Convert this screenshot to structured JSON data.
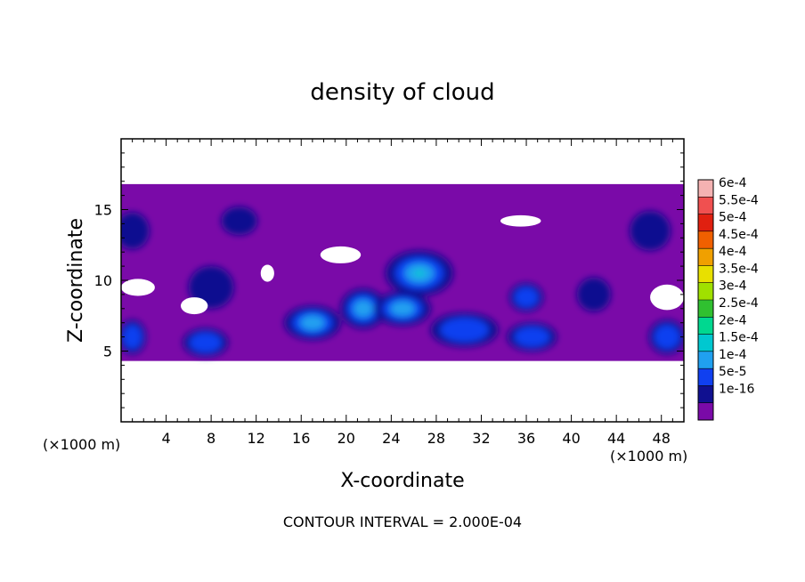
{
  "chart_data": {
    "type": "heatmap",
    "title": "density of cloud",
    "xlabel": "X-coordinate",
    "ylabel": "Z-coordinate",
    "x_unit_label": "(×1000 m)",
    "y_unit_label": "(×1000 m)",
    "xlim": [
      0,
      50
    ],
    "ylim": [
      0,
      20
    ],
    "x_ticks": [
      4,
      8,
      12,
      16,
      20,
      24,
      28,
      32,
      36,
      40,
      44,
      48
    ],
    "y_ticks": [
      5,
      10,
      15
    ],
    "footer": "CONTOUR INTERVAL = 2.000E-04",
    "colorbar": {
      "labels": [
        "6e-4",
        "5.5e-4",
        "5e-4",
        "4.5e-4",
        "4e-4",
        "3.5e-4",
        "3e-4",
        "2.5e-4",
        "2e-4",
        "1.5e-4",
        "1e-4",
        "5e-5",
        "1e-16"
      ],
      "colors": [
        "#f4b2b2",
        "#f05050",
        "#e02010",
        "#f06000",
        "#f0a000",
        "#e8e000",
        "#a0e000",
        "#30c030",
        "#00d890",
        "#00c8d0",
        "#20a0f0",
        "#1040f0",
        "#101090",
        "#7a0aa8"
      ]
    },
    "cloud_band": {
      "z_bottom": 4.3,
      "z_top": 16.8
    },
    "blobs": [
      {
        "x": 1,
        "z": 13.5,
        "rx": 1.5,
        "rz": 1.3,
        "level": 1
      },
      {
        "x": 10.5,
        "z": 14.2,
        "rx": 1.6,
        "rz": 1.0,
        "level": 1
      },
      {
        "x": 8,
        "z": 9.5,
        "rx": 2.0,
        "rz": 1.5,
        "level": 1
      },
      {
        "x": 1,
        "z": 6.0,
        "rx": 1.2,
        "rz": 1.2,
        "level": 2
      },
      {
        "x": 7.5,
        "z": 5.6,
        "rx": 2.0,
        "rz": 1.0,
        "level": 2
      },
      {
        "x": 17,
        "z": 7.0,
        "rx": 2.5,
        "rz": 1.2,
        "level": 3
      },
      {
        "x": 21.5,
        "z": 8.0,
        "rx": 2.0,
        "rz": 1.4,
        "level": 3
      },
      {
        "x": 26.5,
        "z": 10.5,
        "rx": 3.0,
        "rz": 1.6,
        "level": 4
      },
      {
        "x": 25,
        "z": 8.0,
        "rx": 2.5,
        "rz": 1.2,
        "level": 3
      },
      {
        "x": 30.5,
        "z": 6.5,
        "rx": 3.0,
        "rz": 1.2,
        "level": 2
      },
      {
        "x": 36.5,
        "z": 6.0,
        "rx": 2.2,
        "rz": 1.0,
        "level": 2
      },
      {
        "x": 36,
        "z": 8.8,
        "rx": 1.5,
        "rz": 1.0,
        "level": 2
      },
      {
        "x": 48.5,
        "z": 6.0,
        "rx": 1.6,
        "rz": 1.2,
        "level": 2
      },
      {
        "x": 47,
        "z": 13.5,
        "rx": 1.8,
        "rz": 1.4,
        "level": 1
      },
      {
        "x": 42,
        "z": 9.0,
        "rx": 1.5,
        "rz": 1.2,
        "level": 1
      }
    ],
    "gaps": [
      {
        "x": 19.5,
        "z": 11.8,
        "rx": 1.8,
        "rz": 0.6
      },
      {
        "x": 35.5,
        "z": 14.2,
        "rx": 1.8,
        "rz": 0.4
      },
      {
        "x": 1.5,
        "z": 9.5,
        "rx": 1.5,
        "rz": 0.6
      },
      {
        "x": 6.5,
        "z": 8.2,
        "rx": 1.2,
        "rz": 0.6
      },
      {
        "x": 48.5,
        "z": 8.8,
        "rx": 1.5,
        "rz": 0.9
      },
      {
        "x": 13,
        "z": 10.5,
        "rx": 0.6,
        "rz": 0.6
      }
    ]
  }
}
